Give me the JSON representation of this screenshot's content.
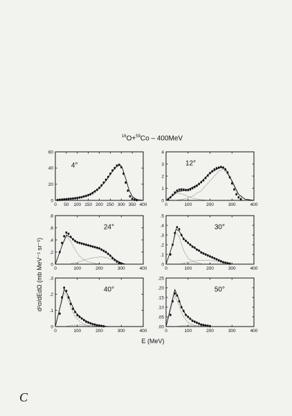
{
  "title": {
    "sup1": "16",
    "p1": "O+",
    "sup2": "59",
    "p2": "Co  –  400MeV"
  },
  "corner_label": "C",
  "chart_data": {
    "type": "scatter",
    "xlabel": "E (MeV)",
    "ylabel": "d²σ/dEdΩ  (mb MeV⁻¹ sr⁻¹)",
    "panels": [
      {
        "angle": "4°",
        "xlim": [
          0,
          400
        ],
        "ylim": [
          0,
          60
        ],
        "yticks": [
          0,
          20,
          40,
          60
        ],
        "yticklabels": [
          "0",
          "20",
          "40",
          "60"
        ],
        "xticks": [
          0,
          50,
          100,
          150,
          200,
          250,
          300,
          350,
          400
        ],
        "series": [
          {
            "kind": "data",
            "x": [
              10,
              20,
              30,
              40,
              50,
              60,
              70,
              80,
              90,
              100,
              110,
              120,
              130,
              140,
              150,
              160,
              170,
              180,
              190,
              200,
              210,
              220,
              230,
              240,
              250,
              260,
              270,
              280,
              290,
              300,
              310,
              320,
              330,
              340,
              350,
              360,
              370
            ],
            "y": [
              0.5,
              0.8,
              1,
              1.3,
              1.5,
              1.8,
              2,
              2.3,
              2.6,
              3,
              3.5,
              4,
              4.8,
              5.5,
              6.5,
              7.5,
              9,
              11,
              13,
              15.5,
              18.5,
              22,
              25.5,
              29,
              33,
              37,
              40,
              43,
              44,
              41,
              33,
              22,
              12,
              5,
              2,
              0.8,
              0.3
            ]
          },
          {
            "kind": "fit",
            "x": [
              0,
              50,
              100,
              150,
              200,
              230,
              260,
              280,
              295,
              305,
              320,
              335,
              350,
              370,
              400
            ],
            "y": [
              0,
              1.5,
              3,
              6.5,
              15,
              24,
              36,
              42,
              44,
              40,
              27,
              13,
              5,
              1,
              0
            ]
          }
        ]
      },
      {
        "angle": "12°",
        "xlim": [
          0,
          400
        ],
        "ylim": [
          0,
          4
        ],
        "yticks": [
          0,
          1,
          2,
          3,
          4
        ],
        "yticklabels": [
          "0",
          "1",
          "2",
          "3",
          "4"
        ],
        "xticks": [
          0,
          100,
          200,
          300,
          400
        ],
        "series": [
          {
            "kind": "data",
            "x": [
              10,
              20,
              30,
              40,
              50,
              60,
              70,
              80,
              90,
              100,
              110,
              120,
              130,
              140,
              150,
              160,
              170,
              180,
              190,
              200,
              210,
              220,
              230,
              240,
              250,
              260,
              270,
              280,
              290,
              300,
              310,
              320,
              330,
              340
            ],
            "y": [
              0.1,
              0.25,
              0.45,
              0.65,
              0.8,
              0.88,
              0.9,
              0.88,
              0.85,
              0.85,
              0.9,
              1,
              1.1,
              1.2,
              1.35,
              1.5,
              1.65,
              1.85,
              2.05,
              2.25,
              2.4,
              2.55,
              2.65,
              2.7,
              2.75,
              2.7,
              2.55,
              2.3,
              1.9,
              1.4,
              0.9,
              0.5,
              0.25,
              0.1
            ]
          },
          {
            "kind": "fit",
            "x": [
              0,
              50,
              100,
              150,
              200,
              250,
              270,
              300,
              330,
              360,
              400
            ],
            "y": [
              0,
              0.7,
              0.9,
              1.35,
              2.25,
              2.75,
              2.6,
              1.6,
              0.5,
              0.1,
              0
            ]
          },
          {
            "kind": "component",
            "x": [
              0,
              30,
              50,
              70,
              90,
              110,
              130,
              160,
              200
            ],
            "y": [
              0,
              0.4,
              0.6,
              0.55,
              0.4,
              0.25,
              0.15,
              0.05,
              0
            ]
          },
          {
            "kind": "component",
            "x": [
              40,
              80,
              120,
              160,
              200,
              240,
              260,
              290,
              320,
              350
            ],
            "y": [
              0,
              0.1,
              0.35,
              0.8,
              1.6,
              2.4,
              2.6,
              1.9,
              0.7,
              0.1
            ]
          }
        ]
      },
      {
        "angle": "24°",
        "xlim": [
          0,
          400
        ],
        "ylim": [
          0,
          0.8
        ],
        "yticks": [
          0,
          0.2,
          0.4,
          0.6,
          0.8
        ],
        "yticklabels": [
          "0",
          ".2",
          ".4",
          ".6",
          ".8"
        ],
        "xticks": [
          0,
          100,
          200,
          300,
          400
        ],
        "series": [
          {
            "kind": "data",
            "x": [
              20,
              30,
              40,
              50,
              60,
              70,
              80,
              90,
              100,
              110,
              120,
              130,
              140,
              150,
              160,
              170,
              180,
              190,
              200,
              210,
              220,
              230,
              240,
              250,
              260,
              270,
              280,
              290,
              300
            ],
            "y": [
              0.2,
              0.35,
              0.46,
              0.52,
              0.5,
              0.45,
              0.41,
              0.38,
              0.36,
              0.35,
              0.34,
              0.33,
              0.32,
              0.31,
              0.3,
              0.29,
              0.28,
              0.27,
              0.26,
              0.24,
              0.22,
              0.2,
              0.17,
              0.14,
              0.1,
              0.07,
              0.04,
              0.02,
              0.01
            ]
          },
          {
            "kind": "fit",
            "x": [
              0,
              30,
              50,
              70,
              100,
              150,
              200,
              240,
              270,
              300,
              320
            ],
            "y": [
              0,
              0.3,
              0.48,
              0.44,
              0.36,
              0.31,
              0.26,
              0.17,
              0.08,
              0.02,
              0
            ]
          },
          {
            "kind": "component",
            "x": [
              0,
              30,
              50,
              70,
              90,
              110,
              140,
              180,
              220
            ],
            "y": [
              0,
              0.3,
              0.46,
              0.38,
              0.24,
              0.13,
              0.05,
              0.01,
              0
            ]
          },
          {
            "kind": "component",
            "x": [
              60,
              100,
              140,
              180,
              210,
              240,
              270,
              300
            ],
            "y": [
              0,
              0.03,
              0.08,
              0.11,
              0.12,
              0.1,
              0.06,
              0.01
            ]
          }
        ]
      },
      {
        "angle": "30°",
        "xlim": [
          0,
          400
        ],
        "ylim": [
          0,
          0.5
        ],
        "yticks": [
          0,
          0.1,
          0.2,
          0.3,
          0.4,
          0.5
        ],
        "yticklabels": [
          "0",
          ".1",
          ".2",
          ".3",
          ".4",
          ".5"
        ],
        "xticks": [
          0,
          100,
          200,
          300,
          400
        ],
        "series": [
          {
            "kind": "data",
            "x": [
              20,
              30,
              40,
              50,
              60,
              70,
              80,
              90,
              100,
              110,
              120,
              130,
              140,
              150,
              160,
              170,
              180,
              190,
              200,
              210,
              220,
              230,
              240,
              250,
              260,
              270,
              280,
              290
            ],
            "y": [
              0.1,
              0.2,
              0.32,
              0.38,
              0.36,
              0.3,
              0.26,
              0.24,
              0.22,
              0.2,
              0.18,
              0.17,
              0.15,
              0.14,
              0.12,
              0.11,
              0.1,
              0.09,
              0.08,
              0.07,
              0.06,
              0.05,
              0.04,
              0.03,
              0.02,
              0.015,
              0.01,
              0.005
            ]
          },
          {
            "kind": "fit",
            "x": [
              0,
              30,
              45,
              60,
              80,
              100,
              140,
              180,
              220,
              260,
              300
            ],
            "y": [
              0,
              0.2,
              0.36,
              0.34,
              0.26,
              0.22,
              0.15,
              0.1,
              0.06,
              0.02,
              0
            ]
          },
          {
            "kind": "component",
            "x": [
              0,
              30,
              45,
              60,
              80,
              100,
              130,
              170
            ],
            "y": [
              0,
              0.2,
              0.33,
              0.28,
              0.14,
              0.06,
              0.02,
              0
            ]
          },
          {
            "kind": "component",
            "x": [
              60,
              100,
              150,
              200,
              250,
              300
            ],
            "y": [
              0,
              0.02,
              0.04,
              0.04,
              0.02,
              0
            ]
          }
        ]
      },
      {
        "angle": "40°",
        "xlim": [
          0,
          400
        ],
        "ylim": [
          0,
          0.3
        ],
        "yticks": [
          0,
          0.1,
          0.2,
          0.3
        ],
        "yticklabels": [
          "0",
          ".1",
          ".2",
          ".3"
        ],
        "xticks": [
          0,
          100,
          200,
          300,
          400
        ],
        "series": [
          {
            "kind": "data",
            "x": [
              20,
              30,
              40,
              50,
              60,
              70,
              80,
              90,
              100,
              110,
              120,
              130,
              140,
              150,
              160,
              170,
              180,
              190,
              200,
              210,
              220
            ],
            "y": [
              0.08,
              0.18,
              0.24,
              0.22,
              0.18,
              0.14,
              0.11,
              0.09,
              0.07,
              0.06,
              0.05,
              0.04,
              0.03,
              0.025,
              0.02,
              0.015,
              0.012,
              0.008,
              0.006,
              0.004,
              0.002
            ]
          },
          {
            "kind": "fit",
            "x": [
              0,
              25,
              40,
              55,
              70,
              90,
              120,
              160,
              200,
              240
            ],
            "y": [
              0,
              0.14,
              0.23,
              0.2,
              0.15,
              0.09,
              0.05,
              0.02,
              0.005,
              0
            ]
          },
          {
            "kind": "component",
            "x": [
              0,
              25,
              40,
              55,
              70,
              90,
              120,
              160
            ],
            "y": [
              0,
              0.13,
              0.21,
              0.18,
              0.12,
              0.06,
              0.02,
              0
            ]
          },
          {
            "kind": "component",
            "x": [
              40,
              80,
              120,
              160,
              200
            ],
            "y": [
              0,
              0.008,
              0.01,
              0.006,
              0
            ]
          }
        ]
      },
      {
        "angle": "50°",
        "xlim": [
          0,
          400
        ],
        "ylim": [
          0,
          0.25
        ],
        "yticks": [
          0,
          0.05,
          0.1,
          0.15,
          0.2,
          0.25
        ],
        "yticklabels": [
          ".00",
          ".05",
          ".10",
          ".15",
          ".20",
          ".25"
        ],
        "xticks": [
          0,
          100,
          200,
          300,
          400
        ],
        "series": [
          {
            "kind": "data",
            "x": [
              20,
              30,
              40,
              50,
              60,
              70,
              80,
              90,
              100,
              110,
              120,
              130,
              140,
              150,
              160,
              170,
              180,
              190,
              200
            ],
            "y": [
              0.06,
              0.13,
              0.17,
              0.16,
              0.13,
              0.1,
              0.08,
              0.06,
              0.05,
              0.04,
              0.03,
              0.025,
              0.02,
              0.015,
              0.01,
              0.008,
              0.006,
              0.004,
              0.002
            ]
          },
          {
            "kind": "fit",
            "x": [
              0,
              25,
              40,
              55,
              70,
              90,
              120,
              160,
              200
            ],
            "y": [
              0,
              0.12,
              0.19,
              0.15,
              0.1,
              0.06,
              0.03,
              0.01,
              0
            ]
          },
          {
            "kind": "component",
            "x": [
              0,
              25,
              40,
              55,
              75,
              100,
              140
            ],
            "y": [
              0,
              0.1,
              0.16,
              0.12,
              0.06,
              0.02,
              0
            ]
          },
          {
            "kind": "component",
            "x": [
              40,
              80,
              120,
              160,
              200
            ],
            "y": [
              0,
              0.005,
              0.007,
              0.004,
              0
            ]
          }
        ]
      }
    ]
  }
}
